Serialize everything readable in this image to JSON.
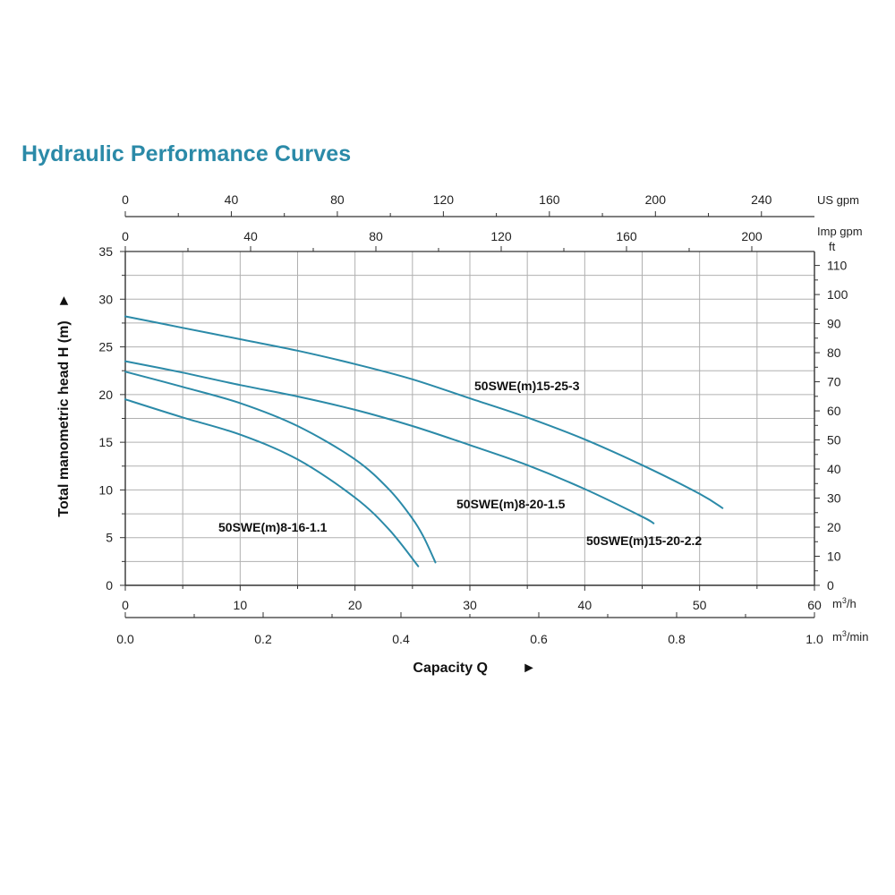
{
  "chart_data": {
    "type": "line",
    "title": "Hydraulic Performance Curves",
    "xlabel": "Capacity Q",
    "ylabel": "Total manometric head H (m)",
    "arrow_glyph": "►",
    "xlim": [
      0,
      60
    ],
    "ylim": [
      0,
      35
    ],
    "grid": true,
    "line_color": "#2b8aa8",
    "x_ticks": [
      0,
      10,
      20,
      30,
      40,
      50,
      60
    ],
    "x_unit": "m³/h",
    "y_ticks": [
      0,
      5,
      10,
      15,
      20,
      25,
      30,
      35
    ],
    "secondary_x_axes": [
      {
        "name": "m3min",
        "unit": "m³/min",
        "range": [
          0,
          1.0
        ],
        "ticks": [
          0.0,
          0.2,
          0.4,
          0.6,
          0.8,
          1.0
        ],
        "tick_labels": [
          "0.0",
          "0.2",
          "0.4",
          "0.6",
          "0.8",
          "1.0"
        ]
      },
      {
        "name": "imp",
        "unit": "Imp gpm",
        "range": [
          0,
          220
        ],
        "ticks": [
          0,
          40,
          80,
          120,
          160,
          200
        ],
        "tick_labels": [
          "0",
          "40",
          "80",
          "120",
          "160",
          "200"
        ]
      },
      {
        "name": "us",
        "unit": "US gpm",
        "range": [
          0,
          260
        ],
        "ticks": [
          0,
          40,
          80,
          120,
          160,
          200,
          240
        ],
        "tick_labels": [
          "0",
          "40",
          "80",
          "120",
          "160",
          "200",
          "240"
        ]
      }
    ],
    "secondary_y_axis": {
      "unit": "ft",
      "range": [
        0,
        114.8
      ],
      "ticks": [
        0,
        10,
        20,
        30,
        40,
        50,
        60,
        70,
        80,
        90,
        100,
        110
      ]
    },
    "series": [
      {
        "name": "50SWE(m)15-25-3",
        "x": [
          0,
          5,
          10,
          15,
          20,
          25,
          30,
          35,
          40,
          45,
          50,
          52
        ],
        "y": [
          28.2,
          27.0,
          25.8,
          24.6,
          23.2,
          21.6,
          19.6,
          17.6,
          15.3,
          12.6,
          9.6,
          8.1
        ]
      },
      {
        "name": "50SWE(m)15-20-2.2",
        "x": [
          0,
          5,
          10,
          15,
          20,
          25,
          30,
          35,
          40,
          45,
          46
        ],
        "y": [
          23.5,
          22.3,
          21.0,
          19.8,
          18.4,
          16.7,
          14.7,
          12.6,
          10.1,
          7.2,
          6.5
        ]
      },
      {
        "name": "50SWE(m)8-20-1.5",
        "x": [
          0,
          5,
          10,
          15,
          20,
          23,
          25,
          26,
          27
        ],
        "y": [
          22.4,
          20.8,
          19.1,
          16.7,
          13.2,
          10.0,
          7.0,
          5.0,
          2.4
        ]
      },
      {
        "name": "50SWE(m)8-16-1.1",
        "x": [
          0,
          5,
          10,
          15,
          20,
          23,
          25.5
        ],
        "y": [
          19.5,
          17.6,
          15.8,
          13.2,
          9.2,
          5.8,
          2.0
        ]
      }
    ]
  }
}
